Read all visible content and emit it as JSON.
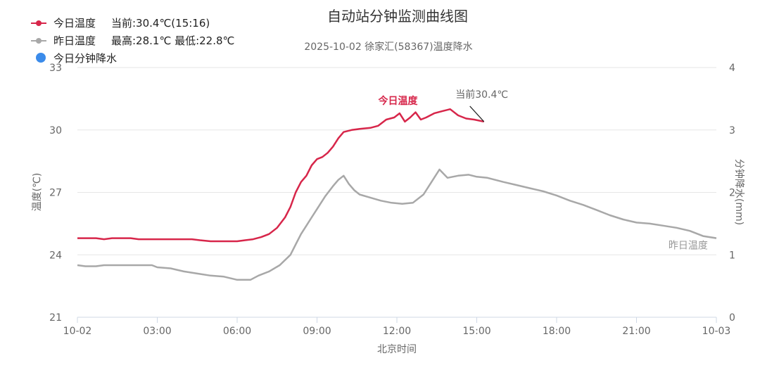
{
  "chart_data": {
    "type": "line",
    "title": "自动站分钟监测曲线图",
    "subtitle": "2025-10-02 徐家汇(58367)温度降水",
    "xlabel": "北京时间",
    "ylabel_left": "温度(℃)",
    "ylabel_right": "分钟降水(mm)",
    "xlim": [
      0,
      24
    ],
    "x_ticks": [
      {
        "x": 0,
        "label": "10-02"
      },
      {
        "x": 3,
        "label": "03:00"
      },
      {
        "x": 6,
        "label": "06:00"
      },
      {
        "x": 9,
        "label": "09:00"
      },
      {
        "x": 12,
        "label": "12:00"
      },
      {
        "x": 15,
        "label": "15:00"
      },
      {
        "x": 18,
        "label": "18:00"
      },
      {
        "x": 21,
        "label": "21:00"
      },
      {
        "x": 24,
        "label": "10-03"
      }
    ],
    "ylim_left": [
      21,
      33
    ],
    "y_ticks_left": [
      21,
      24,
      27,
      30,
      33
    ],
    "ylim_right": [
      0,
      4
    ],
    "y_ticks_right": [
      0,
      1,
      2,
      3,
      4
    ],
    "grid": true,
    "legend": {
      "position": "top-left",
      "entries": [
        {
          "name": "今日温度",
          "info": "当前:30.4℃(15:16)",
          "color": "#d7264a",
          "marker": "line-dot"
        },
        {
          "name": "昨日温度",
          "info": "最高:28.1℃ 最低:22.8℃",
          "color": "#a8a8a8",
          "marker": "line-dot"
        },
        {
          "name": "今日分钟降水",
          "info": "",
          "color": "#3b8bea",
          "marker": "dot"
        }
      ]
    },
    "series": [
      {
        "name": "今日温度",
        "color": "#d7264a",
        "axis": "left",
        "points": [
          [
            0.0,
            24.8
          ],
          [
            0.7,
            24.8
          ],
          [
            1.0,
            24.75
          ],
          [
            1.3,
            24.8
          ],
          [
            2.0,
            24.8
          ],
          [
            2.3,
            24.75
          ],
          [
            3.0,
            24.75
          ],
          [
            3.8,
            24.75
          ],
          [
            4.3,
            24.75
          ],
          [
            4.6,
            24.7
          ],
          [
            5.0,
            24.65
          ],
          [
            5.5,
            24.65
          ],
          [
            6.0,
            24.65
          ],
          [
            6.3,
            24.7
          ],
          [
            6.6,
            24.75
          ],
          [
            6.9,
            24.85
          ],
          [
            7.2,
            25.0
          ],
          [
            7.5,
            25.3
          ],
          [
            7.8,
            25.8
          ],
          [
            8.0,
            26.3
          ],
          [
            8.2,
            27.0
          ],
          [
            8.4,
            27.5
          ],
          [
            8.6,
            27.8
          ],
          [
            8.8,
            28.3
          ],
          [
            9.0,
            28.6
          ],
          [
            9.2,
            28.7
          ],
          [
            9.4,
            28.9
          ],
          [
            9.6,
            29.2
          ],
          [
            9.8,
            29.6
          ],
          [
            10.0,
            29.9
          ],
          [
            10.3,
            30.0
          ],
          [
            10.6,
            30.05
          ],
          [
            11.0,
            30.1
          ],
          [
            11.3,
            30.2
          ],
          [
            11.6,
            30.5
          ],
          [
            11.9,
            30.6
          ],
          [
            12.1,
            30.8
          ],
          [
            12.3,
            30.4
          ],
          [
            12.5,
            30.6
          ],
          [
            12.7,
            30.85
          ],
          [
            12.9,
            30.5
          ],
          [
            13.1,
            30.6
          ],
          [
            13.4,
            30.8
          ],
          [
            13.7,
            30.9
          ],
          [
            14.0,
            31.0
          ],
          [
            14.3,
            30.7
          ],
          [
            14.6,
            30.55
          ],
          [
            14.9,
            30.5
          ],
          [
            15.27,
            30.4
          ]
        ]
      },
      {
        "name": "昨日温度",
        "color": "#a8a8a8",
        "axis": "left",
        "points": [
          [
            0.0,
            23.5
          ],
          [
            0.3,
            23.45
          ],
          [
            0.7,
            23.45
          ],
          [
            1.0,
            23.5
          ],
          [
            2.0,
            23.5
          ],
          [
            2.8,
            23.5
          ],
          [
            3.0,
            23.4
          ],
          [
            3.5,
            23.35
          ],
          [
            4.0,
            23.2
          ],
          [
            4.5,
            23.1
          ],
          [
            5.0,
            23.0
          ],
          [
            5.5,
            22.95
          ],
          [
            6.0,
            22.8
          ],
          [
            6.5,
            22.8
          ],
          [
            6.8,
            23.0
          ],
          [
            7.2,
            23.2
          ],
          [
            7.6,
            23.5
          ],
          [
            8.0,
            24.0
          ],
          [
            8.2,
            24.5
          ],
          [
            8.4,
            25.0
          ],
          [
            8.6,
            25.4
          ],
          [
            8.8,
            25.8
          ],
          [
            9.0,
            26.2
          ],
          [
            9.3,
            26.8
          ],
          [
            9.6,
            27.3
          ],
          [
            9.8,
            27.6
          ],
          [
            10.0,
            27.8
          ],
          [
            10.2,
            27.4
          ],
          [
            10.4,
            27.1
          ],
          [
            10.6,
            26.9
          ],
          [
            11.0,
            26.75
          ],
          [
            11.4,
            26.6
          ],
          [
            11.8,
            26.5
          ],
          [
            12.2,
            26.45
          ],
          [
            12.6,
            26.5
          ],
          [
            13.0,
            26.9
          ],
          [
            13.3,
            27.5
          ],
          [
            13.6,
            28.1
          ],
          [
            13.9,
            27.7
          ],
          [
            14.3,
            27.8
          ],
          [
            14.7,
            27.85
          ],
          [
            15.0,
            27.75
          ],
          [
            15.4,
            27.7
          ],
          [
            16.0,
            27.5
          ],
          [
            16.5,
            27.35
          ],
          [
            17.0,
            27.2
          ],
          [
            17.5,
            27.05
          ],
          [
            18.0,
            26.85
          ],
          [
            18.5,
            26.6
          ],
          [
            19.0,
            26.4
          ],
          [
            19.5,
            26.15
          ],
          [
            20.0,
            25.9
          ],
          [
            20.5,
            25.7
          ],
          [
            21.0,
            25.55
          ],
          [
            21.5,
            25.5
          ],
          [
            22.0,
            25.4
          ],
          [
            22.5,
            25.3
          ],
          [
            23.0,
            25.15
          ],
          [
            23.5,
            24.9
          ],
          [
            24.0,
            24.8
          ]
        ]
      },
      {
        "name": "今日分钟降水",
        "color": "#3b8bea",
        "axis": "right",
        "points": []
      }
    ],
    "annotations": [
      {
        "text": "今日温度",
        "x": 11.3,
        "y": 31.25,
        "color": "#d7264a",
        "series": "今日温度"
      },
      {
        "text": "当前30.4℃",
        "x": 14.2,
        "y": 31.55,
        "color": "#666666",
        "target_x": 15.27,
        "target_y": 30.4
      },
      {
        "text": "昨日温度",
        "x": 22.2,
        "y": 24.3,
        "color": "#999999",
        "series": "昨日温度"
      }
    ]
  }
}
